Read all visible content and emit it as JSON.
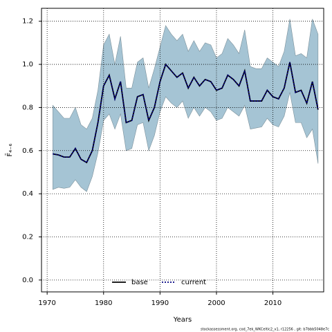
{
  "chart_data": {
    "type": "line",
    "xlabel": "Years",
    "ylabel": "F̄₄₋₆",
    "footer": "stockassessment.org, cod_7ek_WKCeltic2_v1, r12256 , git: b7bbb5048e7c",
    "x": [
      1971,
      1972,
      1973,
      1974,
      1975,
      1976,
      1977,
      1978,
      1979,
      1980,
      1981,
      1982,
      1983,
      1984,
      1985,
      1986,
      1987,
      1988,
      1989,
      1990,
      1991,
      1992,
      1993,
      1994,
      1995,
      1996,
      1997,
      1998,
      1999,
      2000,
      2001,
      2002,
      2003,
      2004,
      2005,
      2006,
      2007,
      2008,
      2009,
      2010,
      2011,
      2012,
      2013,
      2014,
      2015,
      2016,
      2017,
      2018
    ],
    "band": {
      "color": "#a5c4d4",
      "edge": "#7a8f99",
      "upper": [
        0.81,
        0.78,
        0.75,
        0.75,
        0.8,
        0.72,
        0.7,
        0.75,
        0.88,
        1.09,
        1.14,
        1.0,
        1.13,
        0.89,
        0.89,
        1.01,
        1.03,
        0.89,
        0.98,
        1.08,
        1.18,
        1.14,
        1.11,
        1.14,
        1.06,
        1.11,
        1.06,
        1.1,
        1.09,
        1.03,
        1.05,
        1.12,
        1.09,
        1.05,
        1.16,
        0.99,
        0.98,
        0.98,
        1.03,
        1.01,
        0.99,
        1.06,
        1.21,
        1.04,
        1.05,
        1.03,
        1.21,
        1.14
      ],
      "lower": [
        0.42,
        0.43,
        0.425,
        0.43,
        0.465,
        0.43,
        0.41,
        0.48,
        0.59,
        0.74,
        0.77,
        0.7,
        0.77,
        0.6,
        0.61,
        0.72,
        0.73,
        0.6,
        0.67,
        0.78,
        0.85,
        0.82,
        0.8,
        0.83,
        0.75,
        0.8,
        0.76,
        0.8,
        0.78,
        0.74,
        0.75,
        0.8,
        0.78,
        0.76,
        0.81,
        0.7,
        0.705,
        0.71,
        0.75,
        0.72,
        0.71,
        0.76,
        0.87,
        0.73,
        0.73,
        0.66,
        0.7,
        0.54
      ]
    },
    "series": [
      {
        "name": "base",
        "color": "#000000",
        "dash": "none",
        "values": [
          0.585,
          0.58,
          0.57,
          0.57,
          0.61,
          0.56,
          0.545,
          0.6,
          0.73,
          0.9,
          0.95,
          0.84,
          0.92,
          0.73,
          0.74,
          0.85,
          0.86,
          0.74,
          0.8,
          0.92,
          1.0,
          0.97,
          0.94,
          0.96,
          0.89,
          0.94,
          0.9,
          0.93,
          0.92,
          0.88,
          0.89,
          0.95,
          0.93,
          0.9,
          0.97,
          0.83,
          0.83,
          0.83,
          0.88,
          0.85,
          0.84,
          0.89,
          1.01,
          0.87,
          0.88,
          0.82,
          0.92,
          0.79
        ]
      },
      {
        "name": "current",
        "color": "#000080",
        "dash": "2 2",
        "values": [
          0.585,
          0.58,
          0.57,
          0.57,
          0.61,
          0.56,
          0.545,
          0.6,
          0.73,
          0.9,
          0.95,
          0.84,
          0.92,
          0.73,
          0.74,
          0.85,
          0.86,
          0.74,
          0.8,
          0.92,
          1.0,
          0.97,
          0.94,
          0.96,
          0.89,
          0.94,
          0.9,
          0.93,
          0.92,
          0.88,
          0.89,
          0.95,
          0.93,
          0.9,
          0.97,
          0.83,
          0.83,
          0.83,
          0.88,
          0.85,
          0.84,
          0.89,
          1.01,
          0.87,
          0.88,
          0.82,
          0.92,
          0.79
        ]
      }
    ],
    "xlim": [
      1969,
      2019
    ],
    "ylim": [
      -0.055,
      1.26
    ],
    "xticks": [
      1970,
      1980,
      1990,
      2000,
      2010
    ],
    "yticks": [
      {
        "value": 0,
        "label": "0.0"
      },
      0.2,
      0.4,
      0.6,
      0.8,
      {
        "value": 1,
        "label": "1.0"
      },
      1.2
    ],
    "grid": true,
    "legend": "bottom"
  }
}
